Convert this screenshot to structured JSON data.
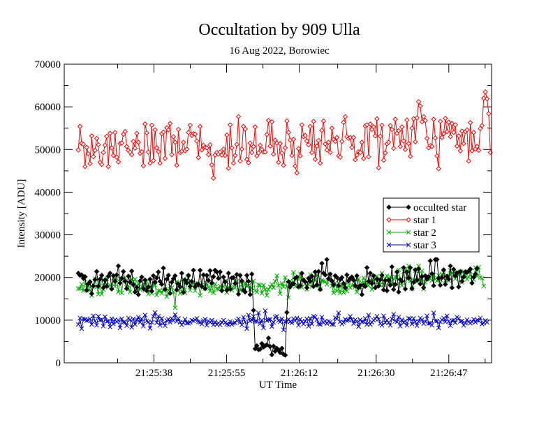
{
  "chart_data": {
    "type": "line",
    "title": "Occultation by 909 Ulla",
    "subtitle": "16 Aug 2022, Borowiec",
    "xlabel": "UT Time",
    "ylabel": "Intensity [ADU]",
    "x_tick_labels": [
      "21:25:38",
      "21:25:55",
      "21:26:12",
      "21:26:30",
      "21:26:47"
    ],
    "x_tick_seconds": [
      38,
      55,
      72,
      90,
      107
    ],
    "x_start_time": "21:25:21",
    "xlim_seconds": [
      17,
      117
    ],
    "ylim": [
      0,
      70000
    ],
    "y_ticks": [
      0,
      10000,
      20000,
      30000,
      40000,
      50000,
      60000,
      70000
    ],
    "legend_position": "right",
    "grid": false,
    "sample_count": 240,
    "x_first_seconds": 20.3,
    "x_last_seconds": 113.6,
    "series": [
      {
        "name": "occulted star",
        "color": "#000000",
        "marker": "diamond-filled",
        "values": [
          21000,
          20500,
          20600,
          19800,
          20200,
          17000,
          18500,
          19000,
          16200,
          18000,
          19500,
          21400,
          18000,
          19600,
          20500,
          17600,
          19400,
          18000,
          20300,
          21000,
          17300,
          20400,
          19100,
          20600,
          22700,
          18700,
          19800,
          21400,
          19100,
          17400,
          20300,
          18900,
          21500,
          18300,
          16600,
          17700,
          16000,
          19200,
          20100,
          17400,
          19400,
          16900,
          17800,
          19600,
          16800,
          20400,
          18900,
          19900,
          21300,
          19100,
          18400,
          22200,
          17200,
          19600,
          20500,
          16300,
          18900,
          19700,
          20400,
          17100,
          18500,
          17800,
          21000,
          16500,
          19400,
          18700,
          20500,
          17900,
          19100,
          21700,
          17800,
          18400,
          18400,
          21700,
          17900,
          20600,
          17400,
          20500,
          19300,
          21600,
          18700,
          20200,
          21700,
          21300,
          19800,
          21300,
          16900,
          20100,
          19000,
          17000,
          21000,
          17300,
          19900,
          20000,
          18600,
          20700,
          16100,
          20500,
          19200,
          17000,
          16600,
          20500,
          19100,
          16000,
          20800,
          12300,
          3300,
          4000,
          3100,
          3200,
          4500,
          3700,
          4000,
          4200,
          5800,
          3800,
          1900,
          3900,
          2700,
          3400,
          3000,
          2400,
          3400,
          2000,
          1800,
          11800,
          19000,
          17800,
          18400,
          18500,
          19800,
          20100,
          17800,
          18100,
          21000,
          19400,
          19000,
          17600,
          19800,
          19100,
          20300,
          17900,
          21300,
          18300,
          21400,
          17200,
          23300,
          21000,
          20600,
          24200,
          19700,
          20800,
          19200,
          18300,
          20400,
          20000,
          18100,
          19500,
          20000,
          18600,
          17600,
          20600,
          19200,
          19800,
          20100,
          19400,
          18100,
          20400,
          17600,
          18100,
          16000,
          18200,
          17900,
          22300,
          19100,
          21000,
          18600,
          20400,
          17600,
          19600,
          18000,
          19500,
          20500,
          17100,
          19300,
          16900,
          19400,
          18200,
          22500,
          17200,
          18400,
          21300,
          16600,
          19500,
          19100,
          22300,
          17300,
          21300,
          19900,
          22300,
          17400,
          18900,
          21800,
          19400,
          22000,
          18500,
          20200,
          17600,
          20400,
          19600,
          20200,
          23900,
          20900,
          18100,
          24200,
          24200,
          19800,
          18200,
          20000,
          21800,
          18400,
          20300,
          19600,
          22700,
          17600,
          21900,
          20400,
          21100,
          17800,
          21400,
          19100,
          20100,
          21300,
          21200,
          21500,
          22000,
          18700,
          20100,
          20800,
          22100
        ]
      },
      {
        "name": "star 1",
        "color": "#ff0000",
        "marker": "diamond-open",
        "values": [
          49900,
          55400,
          51400,
          51200,
          46000,
          50500,
          49000,
          46700,
          53200,
          48300,
          49800,
          52600,
          51100,
          47000,
          46500,
          49300,
          51000,
          53100,
          46000,
          53800,
          50400,
          48600,
          54000,
          48200,
          47100,
          51400,
          51500,
          53600,
          54200,
          50700,
          49800,
          49400,
          48800,
          51900,
          50300,
          53800,
          51700,
          49100,
          49500,
          46200,
          56000,
          53900,
          49400,
          46800,
          55700,
          47400,
          54600,
          50400,
          49500,
          46800,
          53700,
          54100,
          47900,
          55100,
          54600,
          56100,
          48800,
          53000,
          51700,
          46300,
          54700,
          49300,
          49600,
          51700,
          49700,
          50100,
          54000,
          55700,
          53300,
          53700,
          53600,
          52000,
          48100,
          55400,
          49900,
          51000,
          50500,
          50400,
          48800,
          51100,
          46400,
          43300,
          48700,
          49300,
          48900,
          49400,
          48700,
          50100,
          48600,
          53400,
          45600,
          55800,
          50400,
          46800,
          48600,
          51200,
          57700,
          47300,
          50100,
          55400,
          54800,
          47700,
          46900,
          51500,
          49300,
          50700,
          55300,
          48500,
          49200,
          51000,
          50000,
          49400,
          49400,
          53500,
          56800,
          50800,
          56500,
          48900,
          52200,
          51500,
          47000,
          51400,
          49200,
          46300,
          50400,
          56700,
          54000,
          52200,
          48600,
          52400,
          46100,
          44500,
          50200,
          48500,
          55800,
          53000,
          53300,
          52000,
          51100,
          55400,
          49300,
          56600,
          47700,
          50800,
          52100,
          46800,
          54500,
          56700,
          51300,
          49900,
          51700,
          49300,
          55000,
          52400,
          51900,
          52800,
          48500,
          48200,
          51900,
          56400,
          57700,
          53000,
          52600,
          52800,
          50500,
          52800,
          47600,
          48700,
          49500,
          49300,
          51700,
          47900,
          55500,
          55800,
          48300,
          56000,
          54700,
          55300,
          53200,
          57200,
          45700,
          53100,
          55700,
          47500,
          49200,
          51300,
          51700,
          55600,
          54700,
          50300,
          57100,
          53800,
          54400,
          50700,
          55300,
          52000,
          50000,
          56900,
          51400,
          48400,
          55000,
          57200,
          51800,
          57400,
          61200,
          60200,
          56500,
          57700,
          56800,
          52600,
          50400,
          50900,
          50700,
          57100,
          52700,
          48500,
          45500,
          56600,
          52800,
          53700,
          57300,
          54200,
          56400,
          53000,
          56100,
          54000,
          55800,
          50800,
          53200,
          49700,
          54300,
          51400,
          54200,
          54600,
          47300,
          56300,
          49700,
          54000,
          50100,
          50700,
          49800,
          54900,
          55600,
          62000,
          63500,
          61900,
          58400,
          49300
        ]
      },
      {
        "name": "star 2",
        "color": "#00aa00",
        "marker": "x",
        "values": [
          17400,
          17400,
          18400,
          16900,
          19600,
          18100,
          18100,
          17000,
          15800,
          18300,
          19700,
          17800,
          16100,
          18700,
          16100,
          17200,
          18800,
          19800,
          17700,
          18200,
          17700,
          19900,
          17900,
          19700,
          16600,
          19700,
          16400,
          19600,
          19900,
          17600,
          18100,
          16600,
          19600,
          19000,
          19600,
          16800,
          18600,
          17200,
          17800,
          18600,
          17000,
          19000,
          16100,
          17900,
          16300,
          18400,
          18200,
          15900,
          16900,
          16900,
          16300,
          17100,
          17300,
          15500,
          17000,
          18000,
          17600,
          16600,
          12900,
          19000,
          18800,
          16300,
          16700,
          19600,
          16400,
          19300,
          19800,
          17000,
          18300,
          18700,
          16900,
          18100,
          18600,
          15800,
          18200,
          18000,
          17400,
          18600,
          17700,
          16800,
          18100,
          16400,
          18500,
          17400,
          17200,
          18000,
          17600,
          17800,
          19100,
          16500,
          17500,
          18200,
          17000,
          17900,
          17600,
          19100,
          16500,
          17000,
          18400,
          17000,
          18800,
          18000,
          18100,
          17200,
          17500,
          19200,
          16900,
          16600,
          18300,
          18200,
          16300,
          18200,
          17200,
          15800,
          17200,
          17800,
          18400,
          17600,
          19100,
          20400,
          18100,
          16200,
          18600,
          17800,
          20000,
          17900,
          15300,
          19200,
          18700,
          21200,
          17900,
          18300,
          19600,
          20800,
          17700,
          19500,
          18500,
          17200,
          18400,
          20700,
          17900,
          19700,
          19300,
          20700,
          18100,
          17300,
          19300,
          19200,
          19000,
          18400,
          19400,
          19900,
          18000,
          16400,
          18700,
          16800,
          17300,
          16400,
          18200,
          16500,
          18200,
          16800,
          19200,
          17600,
          18100,
          19600,
          17800,
          16600,
          19700,
          17800,
          18700,
          19900,
          18600,
          18400,
          18100,
          19400,
          17200,
          19100,
          19800,
          20300,
          18900,
          18300,
          21000,
          18300,
          19700,
          20400,
          18800,
          20100,
          18300,
          19700,
          20100,
          20100,
          21800,
          19100,
          18100,
          21400,
          21800,
          19600,
          22700,
          19200,
          17400,
          19400,
          21600,
          19000,
          22700,
          19400,
          21600,
          17300,
          18900,
          19800,
          20200,
          19600,
          19300,
          20600,
          19600,
          19200,
          20500,
          19500,
          20800,
          21100,
          19300,
          20400,
          19300,
          21700,
          21000,
          20700,
          19700,
          21200,
          20500,
          21300,
          18900,
          21400,
          20500,
          19600,
          20100,
          21400,
          20100,
          19500,
          22300,
          20300,
          22400,
          20000,
          19800,
          18000
        ]
      },
      {
        "name": "star 3",
        "color": "#0000cc",
        "marker": "x",
        "values": [
          9000,
          10500,
          8000,
          10300,
          10200,
          9900,
          10000,
          10300,
          9000,
          11000,
          9800,
          8800,
          10900,
          10000,
          10100,
          8600,
          10800,
          9700,
          9800,
          8400,
          10300,
          9100,
          10100,
          9600,
          10000,
          8200,
          10300,
          9500,
          9500,
          8700,
          10500,
          10100,
          8300,
          10300,
          9000,
          10000,
          10700,
          9500,
          10300,
          8600,
          11200,
          9800,
          9600,
          8100,
          9500,
          10900,
          11800,
          9400,
          10900,
          8800,
          10400,
          9300,
          8700,
          9900,
          10200,
          9500,
          10400,
          9900,
          11300,
          9700,
          10400,
          9500,
          8900,
          9400,
          10200,
          9300,
          9300,
          9500,
          10000,
          9800,
          10100,
          10400,
          9600,
          9500,
          9100,
          9900,
          10200,
          8800,
          9800,
          9500,
          10000,
          8900,
          9600,
          9000,
          9300,
          8900,
          9500,
          10000,
          9400,
          9100,
          8900,
          9700,
          9000,
          9300,
          9400,
          9900,
          10300,
          9500,
          8900,
          10700,
          9600,
          8000,
          11200,
          9800,
          10000,
          10900,
          9700,
          9700,
          11700,
          9200,
          10000,
          8200,
          12200,
          9900,
          10100,
          10200,
          8500,
          9500,
          10700,
          10900,
          9900,
          9600,
          10300,
          7700,
          9700,
          9700,
          10200,
          9600,
          9400,
          10300,
          9800,
          10500,
          8800,
          10200,
          9600,
          9100,
          9800,
          10300,
          8600,
          10400,
          9100,
          10900,
          10700,
          10100,
          9100,
          9000,
          10700,
          9400,
          9800,
          9200,
          9700,
          9500,
          9000,
          9000,
          10600,
          10300,
          11700,
          9600,
          9100,
          9500,
          10200,
          9900,
          10000,
          10900,
          10100,
          9200,
          10100,
          9700,
          8500,
          10100,
          9600,
          9600,
          10400,
          9000,
          11200,
          9000,
          9500,
          10000,
          10300,
          10900,
          10200,
          9200,
          8800,
          11000,
          9400,
          10000,
          9400,
          8800,
          10300,
          11400,
          9800,
          9600,
          10700,
          8600,
          10100,
          9400,
          9800,
          8800,
          10400,
          10300,
          9100,
          10400,
          9600,
          8700,
          9700,
          10500,
          10100,
          9200,
          9600,
          11000,
          9200,
          9300,
          8800,
          11700,
          9800,
          9800,
          8200,
          9600,
          10100,
          10500,
          9600,
          11000,
          9700,
          8700,
          9900,
          10000,
          9400,
          10700,
          10400,
          9700,
          9800,
          8800,
          9300,
          10100,
          9600,
          9300,
          9600,
          10200,
          9500,
          10000,
          9900,
          10500,
          9100,
          9300,
          9900,
          9500
        ]
      }
    ]
  }
}
